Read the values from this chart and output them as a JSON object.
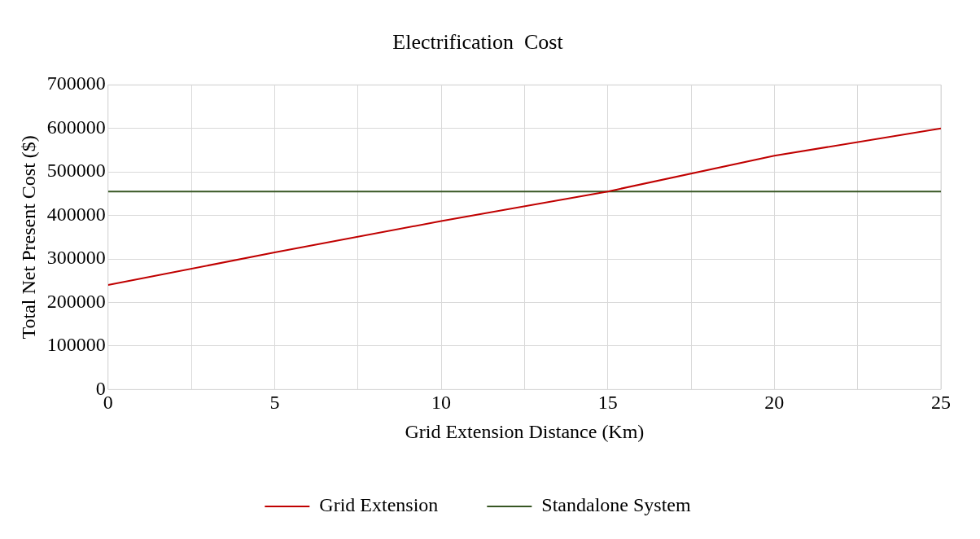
{
  "chart_data": {
    "type": "line",
    "title": "Electrification  Cost",
    "xlabel": "Grid Extension Distance (Km)",
    "ylabel": "Total Net Present Cost ($)",
    "x": [
      0,
      5,
      10,
      15,
      20,
      25
    ],
    "series": [
      {
        "name": "Grid Extension",
        "color": "#c00000",
        "values": [
          240000,
          315000,
          387000,
          455000,
          537000,
          600000
        ]
      },
      {
        "name": "Standalone System",
        "color": "#375623",
        "values": [
          455000,
          455000,
          455000,
          455000,
          455000,
          455000
        ]
      }
    ],
    "xlim": [
      0,
      25
    ],
    "xticks": [
      0,
      {
        "value": 2.5,
        "label": null
      },
      5,
      {
        "value": 7.5,
        "label": null
      },
      10,
      {
        "value": 12.5,
        "label": null
      },
      15,
      {
        "value": 17.5,
        "label": null
      },
      20,
      {
        "value": 22.5,
        "label": null
      },
      25
    ],
    "ylim": [
      0,
      700000
    ],
    "yticks": [
      0,
      100000,
      200000,
      300000,
      400000,
      500000,
      600000,
      700000
    ],
    "grid": true,
    "legend": "bottom",
    "marker": "none",
    "line_style": "solid"
  }
}
